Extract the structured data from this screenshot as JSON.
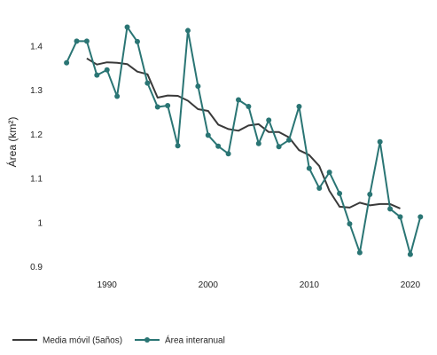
{
  "chart_data": {
    "type": "line",
    "title": "",
    "xlabel": "",
    "ylabel": "Área (km²)",
    "xlim": [
      1984.5,
      2021.5
    ],
    "ylim": [
      0.885,
      1.46
    ],
    "xticks": [
      1990,
      2000,
      2010,
      2020
    ],
    "yticks": [
      0.9,
      1,
      1.1,
      1.2,
      1.3,
      1.4
    ],
    "ytick_labels": [
      "0.9",
      "1",
      "1.1",
      "1.2",
      "1.3",
      "1.4"
    ],
    "grid": false,
    "legend_position": "bottom-left",
    "series": [
      {
        "name": "Media móvil (5años)",
        "color": "#3a3a3a",
        "markers": false,
        "x": [
          1988,
          1989,
          1990,
          1991,
          1992,
          1993,
          1994,
          1995,
          1996,
          1997,
          1998,
          1999,
          2000,
          2001,
          2002,
          2003,
          2004,
          2005,
          2006,
          2007,
          2008,
          2009,
          2010,
          2011,
          2012,
          2013,
          2014,
          2015,
          2016,
          2017,
          2018,
          2019
        ],
        "y": [
          1.372,
          1.358,
          1.363,
          1.362,
          1.359,
          1.342,
          1.336,
          1.283,
          1.288,
          1.287,
          1.276,
          1.257,
          1.253,
          1.222,
          1.212,
          1.208,
          1.22,
          1.223,
          1.205,
          1.205,
          1.193,
          1.164,
          1.153,
          1.128,
          1.072,
          1.036,
          1.034,
          1.045,
          1.039,
          1.042,
          1.042,
          1.032
        ]
      },
      {
        "name": "Área interanual",
        "color": "#2a7574",
        "markers": true,
        "x": [
          1986,
          1987,
          1988,
          1989,
          1990,
          1991,
          1992,
          1993,
          1994,
          1995,
          1996,
          1997,
          1998,
          1999,
          2000,
          2001,
          2002,
          2003,
          2004,
          2005,
          2006,
          2007,
          2008,
          2009,
          2010,
          2011,
          2012,
          2013,
          2014,
          2015,
          2016,
          2017,
          2018,
          2019,
          2020,
          2021
        ],
        "y": [
          1.362,
          1.411,
          1.411,
          1.334,
          1.346,
          1.286,
          1.443,
          1.41,
          1.316,
          1.262,
          1.265,
          1.174,
          1.435,
          1.309,
          1.198,
          1.173,
          1.156,
          1.278,
          1.263,
          1.179,
          1.232,
          1.172,
          1.187,
          1.263,
          1.123,
          1.078,
          1.114,
          1.066,
          0.997,
          0.932,
          1.064,
          1.183,
          1.031,
          1.013,
          0.928,
          1.013
        ]
      }
    ]
  }
}
